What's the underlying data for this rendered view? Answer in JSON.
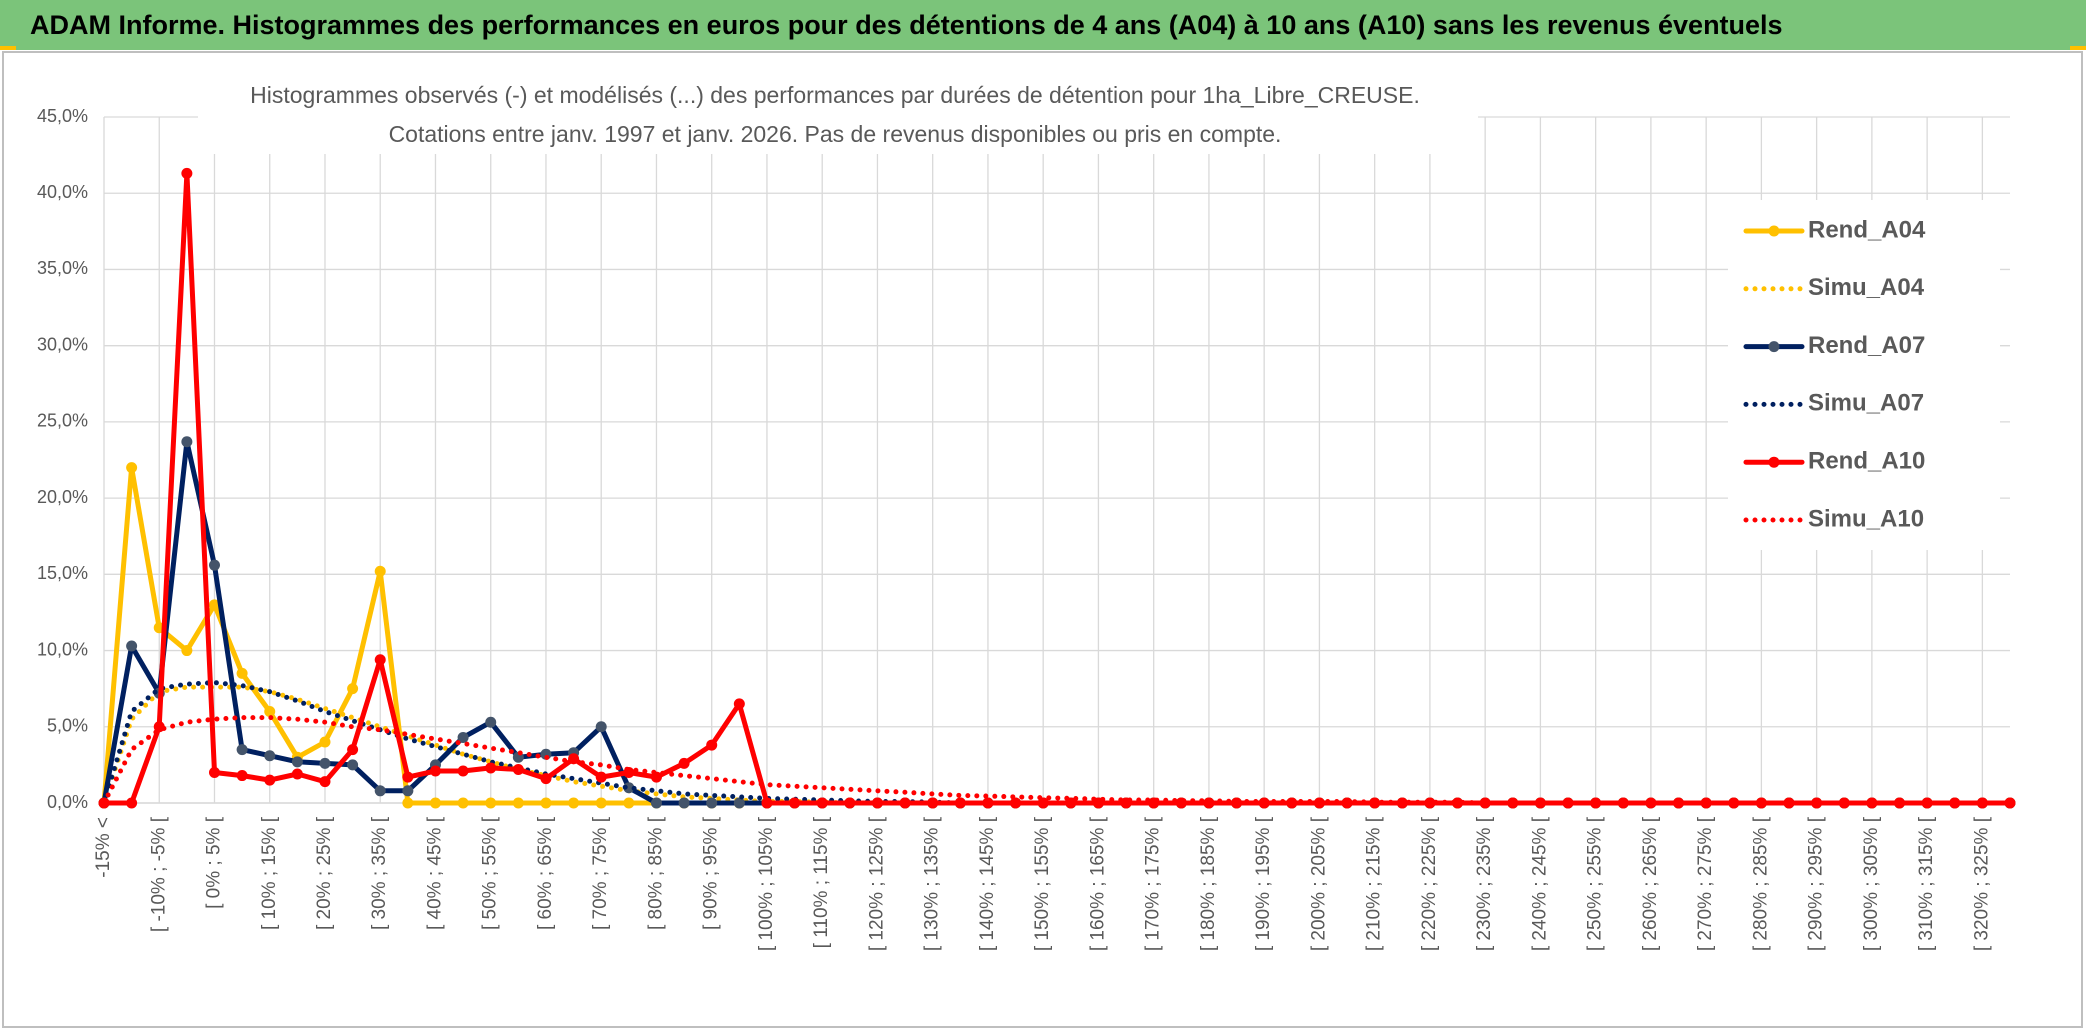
{
  "header": {
    "title": "ADAM Informe. Histogrammes des performances en euros pour des détentions de 4 ans (A04) à 10 ans (A10) sans les revenus éventuels"
  },
  "chart_data": {
    "type": "line",
    "title": [
      "Histogrammes observés (-) et modélisés (...) des performances par durées de détention pour 1ha_Libre_CREUSE.",
      "Cotations entre janv. 1997 et janv. 2026. Pas de revenus disponibles ou pris en compte."
    ],
    "categories": [
      "-15% <",
      null,
      "[ -10% ; -5% [",
      null,
      "[ 0% ; 5% [",
      null,
      "[ 10% ; 15% [",
      null,
      "[ 20% ; 25% [",
      null,
      "[ 30% ; 35% [",
      null,
      "[ 40% ; 45% [",
      null,
      "[ 50% ; 55% [",
      null,
      "[ 60% ; 65% [",
      null,
      "[ 70% ; 75% [",
      null,
      "[ 80% ; 85% [",
      null,
      "[ 90% ; 95% [",
      null,
      "[ 100% ; 105% [",
      null,
      "[ 110% ; 115% [",
      null,
      "[ 120% ; 125% [",
      null,
      "[ 130% ; 135% [",
      null,
      "[ 140% ; 145% [",
      null,
      "[ 150% ; 155% [",
      null,
      "[ 160% ; 165% [",
      null,
      "[ 170% ; 175% [",
      null,
      "[ 180% ; 185% [",
      null,
      "[ 190% ; 195% [",
      null,
      "[ 200% ; 205% [",
      null,
      "[ 210% ; 215% [",
      null,
      "[ 220% ; 225% [",
      null,
      "[ 230% ; 235% [",
      null,
      "[ 240% ; 245% [",
      null,
      "[ 250% ; 255% [",
      null,
      "[ 260% ; 265% [",
      null,
      "[ 270% ; 275% [",
      null,
      "[ 280% ; 285% [",
      null,
      "[ 290% ; 295% [",
      null,
      "[ 300% ; 305% [",
      null,
      "[ 310% ; 315% [",
      null,
      "[ 320% ; 325% [",
      null
    ],
    "series": [
      {
        "name": "Rend_A04",
        "color": "#ffc000",
        "marker_color": "#ffc000",
        "style": "solid",
        "values": [
          0,
          22,
          11.5,
          10,
          13,
          8.5,
          6,
          3,
          4,
          7.5,
          15.2,
          0,
          0,
          0,
          0,
          0,
          0,
          0,
          0,
          0,
          0,
          0,
          0,
          0,
          0,
          0,
          0,
          0,
          0,
          0,
          0,
          0,
          0,
          0,
          0,
          0,
          0,
          0,
          0,
          0,
          0,
          0,
          0,
          0,
          0,
          0,
          0,
          0,
          0,
          0,
          0,
          0,
          0,
          0,
          0,
          0,
          0,
          0,
          0,
          0,
          0,
          0,
          0,
          0,
          0,
          0,
          0,
          0,
          0,
          0
        ]
      },
      {
        "name": "Simu_A04",
        "color": "#ffc000",
        "style": "dotted",
        "values": [
          0,
          5.5,
          7.3,
          7.6,
          7.6,
          7.6,
          7.3,
          6.8,
          6.2,
          5.6,
          5,
          4.4,
          3.8,
          3.2,
          2.7,
          2.2,
          1.8,
          1.4,
          1.1,
          0.8,
          0.6,
          0.4,
          0.3,
          0.2,
          0.1,
          0.1,
          0.05,
          0,
          0,
          0,
          0,
          0,
          0,
          0,
          0,
          0,
          0,
          0,
          0,
          0,
          0,
          0,
          0,
          0,
          0,
          0,
          0,
          0,
          0,
          0,
          0,
          0,
          0,
          0,
          0,
          0,
          0,
          0,
          0,
          0,
          0,
          0,
          0,
          0,
          0,
          0,
          0,
          0,
          0,
          0
        ]
      },
      {
        "name": "Rend_A07",
        "color": "#002060",
        "marker_color": "#44546a",
        "style": "solid",
        "values": [
          0,
          10.3,
          7.2,
          23.7,
          15.6,
          3.5,
          3.1,
          2.7,
          2.6,
          2.5,
          0.8,
          0.8,
          2.5,
          4.3,
          5.3,
          3,
          3.2,
          3.3,
          5,
          1,
          0,
          0,
          0,
          0,
          0,
          0,
          0,
          0,
          0,
          0,
          0,
          0,
          0,
          0,
          0,
          0,
          0,
          0,
          0,
          0,
          0,
          0,
          0,
          0,
          0,
          0,
          0,
          0,
          0,
          0,
          0,
          0,
          0,
          0,
          0,
          0,
          0,
          0,
          0,
          0,
          0,
          0,
          0,
          0,
          0,
          0,
          0,
          0,
          0,
          0
        ]
      },
      {
        "name": "Simu_A07",
        "color": "#002060",
        "style": "dotted",
        "values": [
          0,
          6,
          7.5,
          7.8,
          7.9,
          7.7,
          7.3,
          6.7,
          6,
          5.4,
          4.8,
          4.2,
          3.7,
          3.2,
          2.7,
          2.3,
          1.9,
          1.6,
          1.3,
          1,
          0.8,
          0.6,
          0.5,
          0.4,
          0.3,
          0.25,
          0.2,
          0.15,
          0.1,
          0.1,
          0.05,
          0,
          0,
          0,
          0,
          0,
          0,
          0,
          0,
          0,
          0,
          0,
          0,
          0,
          0,
          0,
          0,
          0,
          0,
          0,
          0,
          0,
          0,
          0,
          0,
          0,
          0,
          0,
          0,
          0,
          0,
          0,
          0,
          0,
          0,
          0,
          0,
          0,
          0,
          0
        ]
      },
      {
        "name": "Rend_A10",
        "color": "#ff0000",
        "marker_color": "#ff0000",
        "style": "solid",
        "values": [
          0,
          0,
          5,
          41.3,
          2,
          1.8,
          1.5,
          1.9,
          1.4,
          3.5,
          9.4,
          1.7,
          2.1,
          2.1,
          2.3,
          2.2,
          1.6,
          2.9,
          1.7,
          2,
          1.7,
          2.6,
          3.8,
          6.5,
          0,
          0,
          0,
          0,
          0,
          0,
          0,
          0,
          0,
          0,
          0,
          0,
          0,
          0,
          0,
          0,
          0,
          0,
          0,
          0,
          0,
          0,
          0,
          0,
          0,
          0,
          0,
          0,
          0,
          0,
          0,
          0,
          0,
          0,
          0,
          0,
          0,
          0,
          0,
          0,
          0,
          0,
          0,
          0,
          0,
          0
        ]
      },
      {
        "name": "Simu_A10",
        "color": "#ff0000",
        "style": "dotted",
        "values": [
          0,
          3.5,
          4.8,
          5.3,
          5.5,
          5.6,
          5.6,
          5.5,
          5.3,
          5,
          4.8,
          4.5,
          4.2,
          3.9,
          3.6,
          3.3,
          3,
          2.7,
          2.5,
          2.2,
          2,
          1.8,
          1.6,
          1.4,
          1.2,
          1.1,
          1,
          0.9,
          0.8,
          0.7,
          0.6,
          0.5,
          0.45,
          0.4,
          0.35,
          0.3,
          0.25,
          0.2,
          0.2,
          0.15,
          0.15,
          0.1,
          0.1,
          0.1,
          0.1,
          0.1,
          0.05,
          0.05,
          0.05,
          0.05,
          0,
          0,
          0,
          0,
          0,
          0,
          0,
          0,
          0,
          0,
          0,
          0,
          0,
          0,
          0,
          0,
          0,
          0,
          0,
          0
        ]
      }
    ],
    "ylim": [
      0,
      45
    ],
    "yticks": [
      {
        "value": 0,
        "label": "0,0%"
      },
      {
        "value": 5,
        "label": "5,0%"
      },
      {
        "value": 10,
        "label": "10,0%"
      },
      {
        "value": 15,
        "label": "15,0%"
      },
      {
        "value": 20,
        "label": "20,0%"
      },
      {
        "value": 25,
        "label": "25,0%"
      },
      {
        "value": 30,
        "label": "30,0%"
      },
      {
        "value": 35,
        "label": "35,0%"
      },
      {
        "value": 40,
        "label": "40,0%"
      },
      {
        "value": 45,
        "label": "45,0%"
      }
    ],
    "grid": true,
    "legend": "right"
  }
}
